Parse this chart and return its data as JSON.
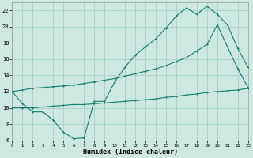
{
  "xlabel": "Humidex (Indice chaleur)",
  "bg_color": "#cce8e0",
  "grid_color": "#aacfc8",
  "line_color": "#1a7a6e",
  "series1_x": [
    0,
    1,
    2,
    3,
    4,
    5,
    6,
    7,
    8,
    9,
    10,
    11,
    12,
    13,
    14,
    15,
    16,
    17,
    18,
    19,
    20,
    21,
    22,
    23
  ],
  "series1_y": [
    12,
    10.5,
    9.5,
    9.5,
    8.5,
    7.0,
    6.2,
    6.3,
    10.8,
    10.8,
    13.2,
    15.0,
    16.5,
    17.5,
    18.5,
    19.8,
    21.3,
    22.3,
    21.5,
    22.5,
    21.5,
    20.2,
    17.3,
    15.0
  ],
  "series2_x": [
    0,
    1,
    2,
    3,
    4,
    5,
    6,
    7,
    8,
    9,
    10,
    11,
    12,
    13,
    14,
    15,
    16,
    17,
    18,
    19,
    20,
    21,
    22,
    23
  ],
  "series2_y": [
    12,
    12.2,
    12.4,
    12.5,
    12.6,
    12.7,
    12.8,
    13.0,
    13.2,
    13.4,
    13.6,
    13.9,
    14.2,
    14.5,
    14.8,
    15.2,
    15.7,
    16.2,
    17.0,
    17.8,
    20.2,
    17.5,
    14.8,
    12.5
  ],
  "series3_x": [
    0,
    1,
    2,
    3,
    4,
    5,
    6,
    7,
    8,
    9,
    10,
    11,
    12,
    13,
    14,
    15,
    16,
    17,
    18,
    19,
    20,
    21,
    22,
    23
  ],
  "series3_y": [
    10.0,
    10.0,
    10.0,
    10.1,
    10.2,
    10.3,
    10.4,
    10.4,
    10.5,
    10.6,
    10.7,
    10.8,
    10.9,
    11.0,
    11.1,
    11.3,
    11.4,
    11.6,
    11.7,
    11.9,
    12.0,
    12.1,
    12.2,
    12.4
  ],
  "xlim": [
    0,
    23
  ],
  "ylim": [
    6,
    23
  ],
  "yticks": [
    6,
    8,
    10,
    12,
    14,
    16,
    18,
    20,
    22
  ],
  "xticks": [
    0,
    1,
    2,
    3,
    4,
    5,
    6,
    7,
    8,
    9,
    10,
    11,
    12,
    13,
    14,
    15,
    16,
    17,
    18,
    19,
    20,
    21,
    22,
    23
  ],
  "xlabel_fontsize": 6,
  "tick_fontsize": 5,
  "lw": 0.8,
  "ms": 2.0
}
